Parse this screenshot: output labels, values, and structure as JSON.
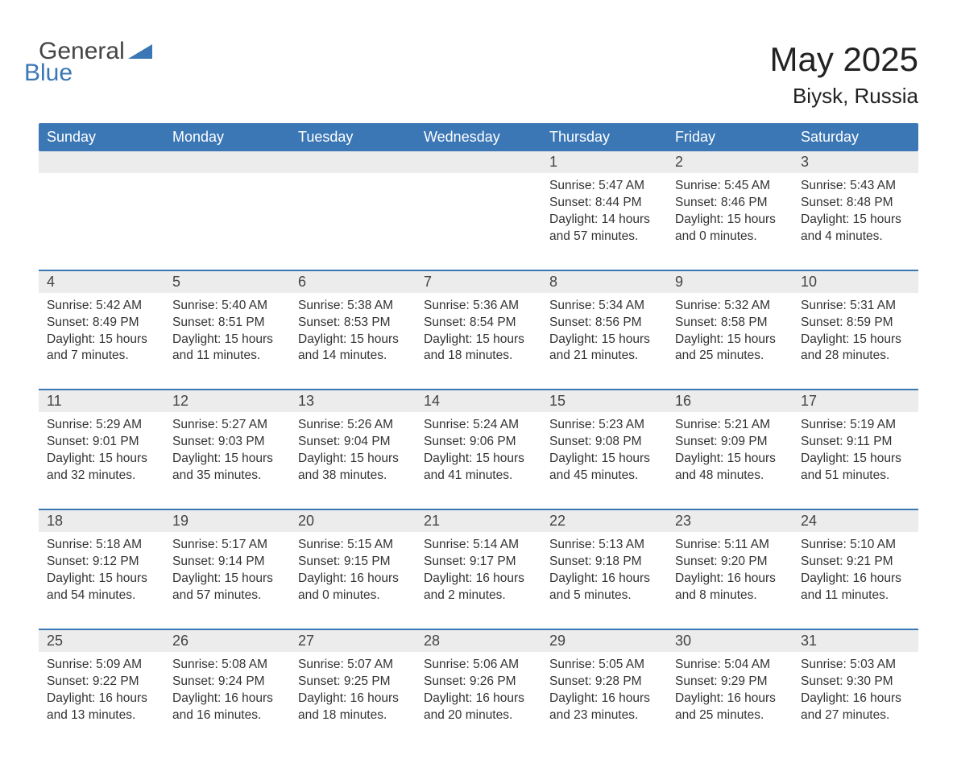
{
  "brand": {
    "part1": "General",
    "part2": "Blue"
  },
  "title": "May 2025",
  "location": "Biysk, Russia",
  "colors": {
    "header_bg": "#3b77b5",
    "header_text": "#ffffff",
    "band_bg": "#ececec",
    "rule": "#3b77b5",
    "text": "#333333",
    "brand_blue": "#3b77b5",
    "brand_gray": "#444444",
    "page_bg": "#ffffff"
  },
  "weekdays": [
    "Sunday",
    "Monday",
    "Tuesday",
    "Wednesday",
    "Thursday",
    "Friday",
    "Saturday"
  ],
  "weeks": [
    [
      null,
      null,
      null,
      null,
      {
        "n": "1",
        "sunrise": "5:47 AM",
        "sunset": "8:44 PM",
        "day_h": "14",
        "day_m": "57"
      },
      {
        "n": "2",
        "sunrise": "5:45 AM",
        "sunset": "8:46 PM",
        "day_h": "15",
        "day_m": "0"
      },
      {
        "n": "3",
        "sunrise": "5:43 AM",
        "sunset": "8:48 PM",
        "day_h": "15",
        "day_m": "4"
      }
    ],
    [
      {
        "n": "4",
        "sunrise": "5:42 AM",
        "sunset": "8:49 PM",
        "day_h": "15",
        "day_m": "7"
      },
      {
        "n": "5",
        "sunrise": "5:40 AM",
        "sunset": "8:51 PM",
        "day_h": "15",
        "day_m": "11"
      },
      {
        "n": "6",
        "sunrise": "5:38 AM",
        "sunset": "8:53 PM",
        "day_h": "15",
        "day_m": "14"
      },
      {
        "n": "7",
        "sunrise": "5:36 AM",
        "sunset": "8:54 PM",
        "day_h": "15",
        "day_m": "18"
      },
      {
        "n": "8",
        "sunrise": "5:34 AM",
        "sunset": "8:56 PM",
        "day_h": "15",
        "day_m": "21"
      },
      {
        "n": "9",
        "sunrise": "5:32 AM",
        "sunset": "8:58 PM",
        "day_h": "15",
        "day_m": "25"
      },
      {
        "n": "10",
        "sunrise": "5:31 AM",
        "sunset": "8:59 PM",
        "day_h": "15",
        "day_m": "28"
      }
    ],
    [
      {
        "n": "11",
        "sunrise": "5:29 AM",
        "sunset": "9:01 PM",
        "day_h": "15",
        "day_m": "32"
      },
      {
        "n": "12",
        "sunrise": "5:27 AM",
        "sunset": "9:03 PM",
        "day_h": "15",
        "day_m": "35"
      },
      {
        "n": "13",
        "sunrise": "5:26 AM",
        "sunset": "9:04 PM",
        "day_h": "15",
        "day_m": "38"
      },
      {
        "n": "14",
        "sunrise": "5:24 AM",
        "sunset": "9:06 PM",
        "day_h": "15",
        "day_m": "41"
      },
      {
        "n": "15",
        "sunrise": "5:23 AM",
        "sunset": "9:08 PM",
        "day_h": "15",
        "day_m": "45"
      },
      {
        "n": "16",
        "sunrise": "5:21 AM",
        "sunset": "9:09 PM",
        "day_h": "15",
        "day_m": "48"
      },
      {
        "n": "17",
        "sunrise": "5:19 AM",
        "sunset": "9:11 PM",
        "day_h": "15",
        "day_m": "51"
      }
    ],
    [
      {
        "n": "18",
        "sunrise": "5:18 AM",
        "sunset": "9:12 PM",
        "day_h": "15",
        "day_m": "54"
      },
      {
        "n": "19",
        "sunrise": "5:17 AM",
        "sunset": "9:14 PM",
        "day_h": "15",
        "day_m": "57"
      },
      {
        "n": "20",
        "sunrise": "5:15 AM",
        "sunset": "9:15 PM",
        "day_h": "16",
        "day_m": "0"
      },
      {
        "n": "21",
        "sunrise": "5:14 AM",
        "sunset": "9:17 PM",
        "day_h": "16",
        "day_m": "2"
      },
      {
        "n": "22",
        "sunrise": "5:13 AM",
        "sunset": "9:18 PM",
        "day_h": "16",
        "day_m": "5"
      },
      {
        "n": "23",
        "sunrise": "5:11 AM",
        "sunset": "9:20 PM",
        "day_h": "16",
        "day_m": "8"
      },
      {
        "n": "24",
        "sunrise": "5:10 AM",
        "sunset": "9:21 PM",
        "day_h": "16",
        "day_m": "11"
      }
    ],
    [
      {
        "n": "25",
        "sunrise": "5:09 AM",
        "sunset": "9:22 PM",
        "day_h": "16",
        "day_m": "13"
      },
      {
        "n": "26",
        "sunrise": "5:08 AM",
        "sunset": "9:24 PM",
        "day_h": "16",
        "day_m": "16"
      },
      {
        "n": "27",
        "sunrise": "5:07 AM",
        "sunset": "9:25 PM",
        "day_h": "16",
        "day_m": "18"
      },
      {
        "n": "28",
        "sunrise": "5:06 AM",
        "sunset": "9:26 PM",
        "day_h": "16",
        "day_m": "20"
      },
      {
        "n": "29",
        "sunrise": "5:05 AM",
        "sunset": "9:28 PM",
        "day_h": "16",
        "day_m": "23"
      },
      {
        "n": "30",
        "sunrise": "5:04 AM",
        "sunset": "9:29 PM",
        "day_h": "16",
        "day_m": "25"
      },
      {
        "n": "31",
        "sunrise": "5:03 AM",
        "sunset": "9:30 PM",
        "day_h": "16",
        "day_m": "27"
      }
    ]
  ],
  "labels": {
    "sunrise": "Sunrise: ",
    "sunset": "Sunset: ",
    "daylight_pre": "Daylight: ",
    "daylight_mid": " hours and ",
    "daylight_post": " minutes."
  }
}
